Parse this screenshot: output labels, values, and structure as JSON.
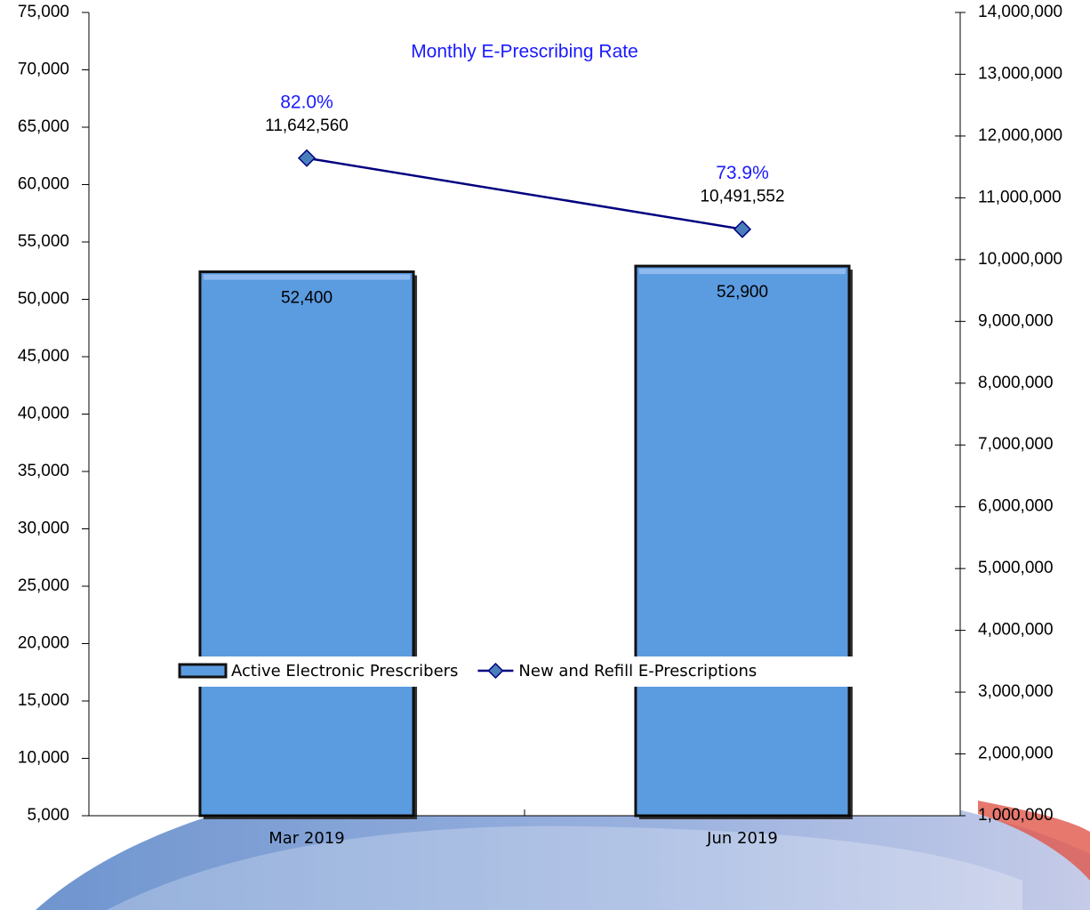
{
  "chart_data": {
    "type": "combo",
    "title": "Monthly E-Prescribing Rate",
    "categories": [
      "Mar 2019",
      "Jun 2019"
    ],
    "series": [
      {
        "name": "Active Electronic Prescribers",
        "type": "bar",
        "color": "#5b9be0",
        "values": [
          52400,
          52900
        ],
        "value_labels": [
          "52,400",
          "52,900"
        ]
      },
      {
        "name": "New and Refill E-Prescriptions",
        "type": "line",
        "axis": "y2",
        "color": "#000080",
        "marker_color": "#4a7ebb",
        "values": [
          11642560,
          10491552
        ],
        "value_labels": [
          "11,642,560",
          "10,491,552"
        ]
      }
    ],
    "rates": {
      "color": "#1a1aff",
      "values": [
        82.0,
        73.9
      ],
      "value_labels": [
        "82.0%",
        "73.9%"
      ]
    },
    "ylim": [
      5000,
      75000
    ],
    "yticks": [
      {
        "value": 5000,
        "label": "5,000"
      },
      {
        "value": 10000,
        "label": "10,000"
      },
      {
        "value": 15000,
        "label": "15,000"
      },
      {
        "value": 20000,
        "label": "20,000"
      },
      {
        "value": 25000,
        "label": "25,000"
      },
      {
        "value": 30000,
        "label": "30,000"
      },
      {
        "value": 35000,
        "label": "35,000"
      },
      {
        "value": 40000,
        "label": "40,000"
      },
      {
        "value": 45000,
        "label": "45,000"
      },
      {
        "value": 50000,
        "label": "50,000"
      },
      {
        "value": 55000,
        "label": "55,000"
      },
      {
        "value": 60000,
        "label": "60,000"
      },
      {
        "value": 65000,
        "label": "65,000"
      },
      {
        "value": 70000,
        "label": "70,000"
      },
      {
        "value": 75000,
        "label": "75,000"
      }
    ],
    "y2lim": [
      1000000,
      14000000
    ],
    "y2ticks": [
      {
        "value": 1000000,
        "label": "1,000,000"
      },
      {
        "value": 2000000,
        "label": "2,000,000"
      },
      {
        "value": 3000000,
        "label": "3,000,000"
      },
      {
        "value": 4000000,
        "label": "4,000,000"
      },
      {
        "value": 5000000,
        "label": "5,000,000"
      },
      {
        "value": 6000000,
        "label": "6,000,000"
      },
      {
        "value": 7000000,
        "label": "7,000,000"
      },
      {
        "value": 8000000,
        "label": "8,000,000"
      },
      {
        "value": 9000000,
        "label": "9,000,000"
      },
      {
        "value": 10000000,
        "label": "10,000,000"
      },
      {
        "value": 11000000,
        "label": "11,000,000"
      },
      {
        "value": 12000000,
        "label": "12,000,000"
      },
      {
        "value": 13000000,
        "label": "13,000,000"
      },
      {
        "value": 14000000,
        "label": "14,000,000"
      }
    ],
    "grid": false,
    "legend": "bottom"
  }
}
